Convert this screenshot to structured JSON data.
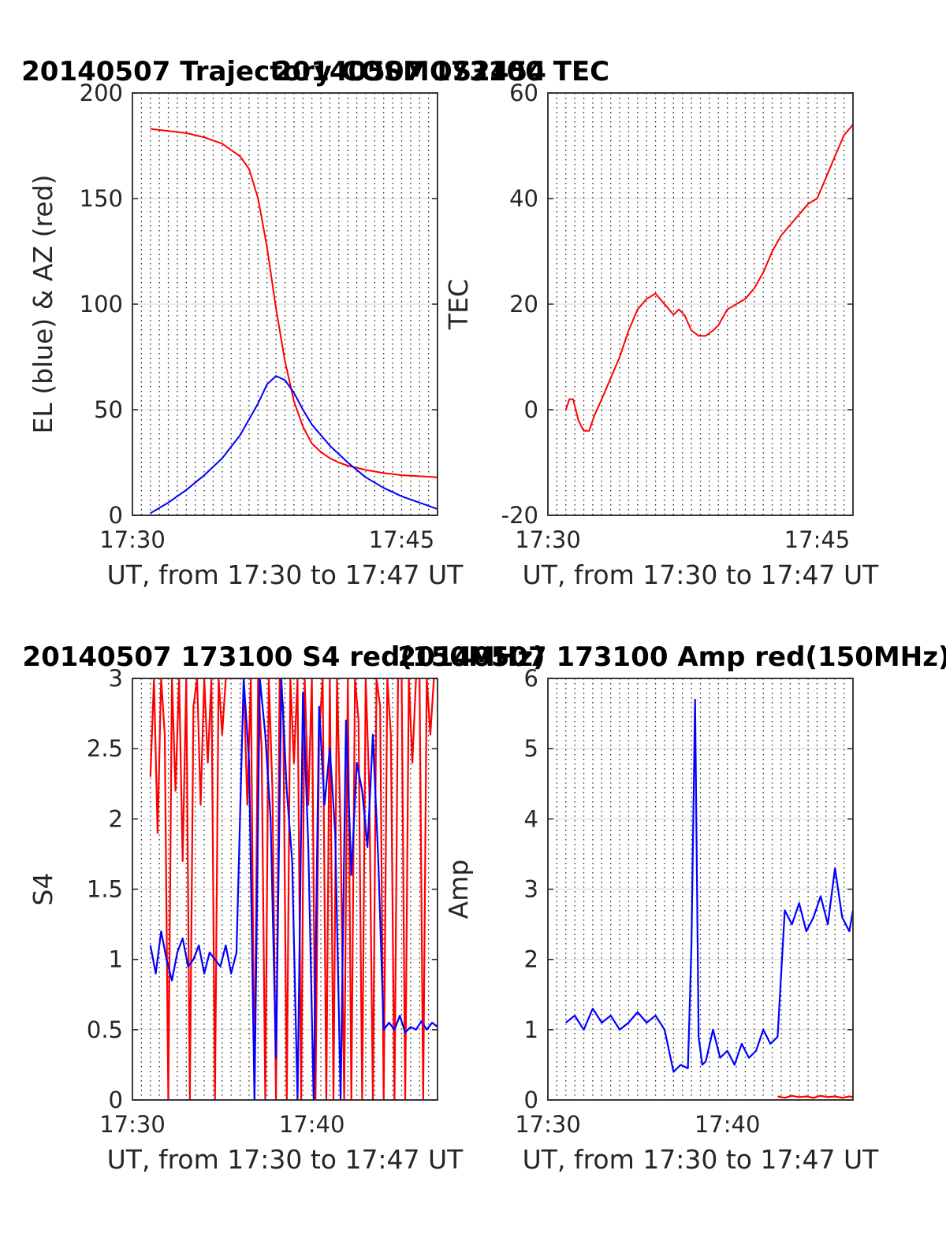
{
  "chart_data": [
    {
      "type": "line",
      "title": "20140507 Trajectory COSMOS2454",
      "xlabel": "UT, from 17:30 to 17:47 UT",
      "ylabel": "EL (blue) & AZ (red)",
      "xlim": [
        0,
        17
      ],
      "ylim": [
        0,
        200
      ],
      "yticks": [
        0,
        50,
        100,
        150,
        200
      ],
      "xticks": [
        {
          "v": 0,
          "label": "17:30"
        },
        {
          "v": 15,
          "label": "17:45"
        }
      ],
      "grid": "dotted vertical every 0.5 min, light horizontal at y ticks",
      "series": [
        {
          "name": "AZ",
          "color": "#ff0000",
          "x": [
            1,
            2,
            3,
            4,
            5,
            6,
            6.5,
            7,
            7.5,
            8,
            8.5,
            9,
            9.5,
            10,
            10.5,
            11,
            11.5,
            12,
            13,
            14,
            15,
            16,
            17
          ],
          "y": [
            183,
            182,
            181,
            179,
            176,
            170,
            164,
            150,
            127,
            98,
            73,
            54,
            42,
            34,
            30,
            27,
            25,
            23.5,
            21.5,
            20,
            19,
            18.5,
            18
          ]
        },
        {
          "name": "EL",
          "color": "#0000ff",
          "x": [
            1,
            2,
            3,
            4,
            5,
            6,
            7,
            7.5,
            8,
            8.5,
            9,
            9.5,
            10,
            11,
            12,
            13,
            14,
            15,
            16,
            17
          ],
          "y": [
            1,
            6,
            12,
            19,
            27,
            38,
            53,
            62,
            66,
            64,
            58,
            50,
            43,
            33,
            25,
            18,
            13,
            9,
            6,
            3
          ]
        }
      ]
    },
    {
      "type": "line",
      "title": "20140507 173100 TEC",
      "xlabel": "UT, from 17:30 to 17:47 UT",
      "ylabel": "TEC",
      "xlim": [
        0,
        17
      ],
      "ylim": [
        -20,
        60
      ],
      "yticks": [
        -20,
        0,
        20,
        40,
        60
      ],
      "xticks": [
        {
          "v": 0,
          "label": "17:30"
        },
        {
          "v": 15,
          "label": "17:45"
        }
      ],
      "grid": "dotted vertical every 0.5 min, light horizontal at y ticks",
      "series": [
        {
          "name": "TEC",
          "color": "#ff0000",
          "x": [
            1,
            1.2,
            1.4,
            1.7,
            2,
            2.3,
            2.6,
            3,
            3.5,
            4,
            4.5,
            5,
            5.5,
            6,
            6.5,
            7,
            7.3,
            7.6,
            8,
            8.4,
            8.8,
            9.2,
            9.5,
            10,
            10.5,
            11,
            11.5,
            12,
            12.5,
            13,
            13.5,
            14,
            14.5,
            15,
            15.5,
            16,
            16.5,
            17
          ],
          "y": [
            0,
            2,
            2,
            -2,
            -4,
            -4,
            -1,
            2,
            6,
            10,
            15,
            19,
            21,
            22,
            20,
            18,
            19,
            18,
            15,
            14,
            14,
            15,
            16,
            19,
            20,
            21,
            23,
            26,
            30,
            33,
            35,
            37,
            39,
            40,
            44,
            48,
            52,
            54
          ]
        }
      ]
    },
    {
      "type": "line",
      "title": "20140507 173100 S4 red(150MHz)",
      "xlabel": "UT, from 17:30 to 17:47 UT",
      "ylabel": "S4",
      "xlim": [
        0,
        17
      ],
      "ylim": [
        0,
        3
      ],
      "yticks": [
        0,
        0.5,
        1,
        1.5,
        2,
        2.5,
        3
      ],
      "xticks": [
        {
          "v": 0,
          "label": "17:30"
        },
        {
          "v": 10,
          "label": "17:40"
        }
      ],
      "grid": "dotted vertical every 0.5 min, light horizontal at y ticks",
      "series": [
        {
          "name": "S4 red",
          "color": "#ff0000",
          "x": [
            1,
            1.2,
            1.4,
            1.6,
            1.8,
            2,
            2.2,
            2.4,
            2.6,
            2.8,
            3,
            3.2,
            3.4,
            3.6,
            3.8,
            4,
            4.2,
            4.4,
            4.6,
            4.8,
            5,
            5.2,
            5.4,
            5.6,
            5.8,
            6,
            6.2,
            6.4,
            6.6,
            6.8,
            7,
            7.2,
            7.4,
            7.6,
            7.8,
            8,
            8.2,
            8.4,
            8.6,
            8.8,
            9,
            9.2,
            9.4,
            9.6,
            9.8,
            10,
            10.2,
            10.4,
            10.6,
            10.8,
            11,
            11.2,
            11.4,
            11.6,
            11.8,
            12,
            12.2,
            12.4,
            12.6,
            12.8,
            13,
            13.2,
            13.4,
            13.6,
            13.8,
            14,
            14.2,
            14.4,
            14.6,
            14.8,
            15,
            15.2,
            15.4,
            15.6,
            15.8,
            16,
            16.2,
            16.4,
            16.6,
            16.8,
            17
          ],
          "y": [
            2.3,
            3,
            1.9,
            3,
            2.6,
            0,
            3,
            2.2,
            3,
            1.7,
            3,
            0,
            2.8,
            3,
            2.1,
            3,
            2.4,
            3,
            0,
            3,
            2.6,
            3,
            3,
            3,
            3,
            3,
            3,
            2.1,
            3,
            0,
            3,
            2.5,
            0,
            3,
            2.2,
            0,
            3,
            2.8,
            0,
            3,
            2.4,
            3,
            0,
            3,
            2.1,
            3,
            0,
            2.6,
            3,
            0,
            3,
            0,
            3,
            1.9,
            0,
            3,
            0,
            3,
            2.7,
            0,
            3,
            2.2,
            0,
            3,
            2.8,
            0,
            3,
            2.6,
            0,
            3,
            3,
            0,
            3,
            2.4,
            3,
            3,
            0,
            3,
            2.6,
            3,
            3
          ]
        },
        {
          "name": "S4 blue",
          "color": "#0000ff",
          "x": [
            1,
            1.3,
            1.6,
            1.9,
            2.2,
            2.5,
            2.8,
            3.1,
            3.4,
            3.7,
            4,
            4.3,
            4.6,
            4.9,
            5.2,
            5.5,
            5.8,
            6.2,
            6.5,
            6.8,
            7.1,
            7.4,
            7.7,
            8,
            8.3,
            8.6,
            8.9,
            9.2,
            9.5,
            9.8,
            10.1,
            10.4,
            10.7,
            11,
            11.3,
            11.6,
            11.9,
            12.2,
            12.5,
            12.8,
            13.1,
            13.4,
            13.7,
            14,
            14.3,
            14.6,
            14.9,
            15.2,
            15.5,
            15.8,
            16.1,
            16.4,
            16.7,
            17
          ],
          "y": [
            1.1,
            0.9,
            1.2,
            1.0,
            0.85,
            1.05,
            1.15,
            0.95,
            1.0,
            1.1,
            0.9,
            1.05,
            1.0,
            0.95,
            1.1,
            0.9,
            1.05,
            3,
            2.4,
            0,
            3,
            2.6,
            2.0,
            0.3,
            3,
            2.2,
            1.7,
            0,
            2.9,
            1.8,
            0,
            2.8,
            2.1,
            2.5,
            1.9,
            0,
            2.7,
            1.6,
            2.4,
            2.2,
            1.8,
            2.6,
            1.7,
            0.5,
            0.55,
            0.5,
            0.6,
            0.48,
            0.52,
            0.5,
            0.56,
            0.5,
            0.55,
            0.52
          ]
        }
      ]
    },
    {
      "type": "line",
      "title": "20140507 173100 Amp red(150MHz)",
      "xlabel": "UT, from 17:30 to 17:47 UT",
      "ylabel": "Amp",
      "xlim": [
        0,
        17
      ],
      "ylim": [
        0,
        6
      ],
      "yticks": [
        0,
        1,
        2,
        3,
        4,
        5,
        6
      ],
      "xticks": [
        {
          "v": 0,
          "label": "17:30"
        },
        {
          "v": 10,
          "label": "17:40"
        }
      ],
      "grid": "dotted vertical every 0.5 min, light horizontal at y ticks",
      "series": [
        {
          "name": "Amp red",
          "color": "#ff0000",
          "x": [
            12.8,
            13.2,
            13.6,
            14,
            14.4,
            14.8,
            15.2,
            15.6,
            16,
            16.4,
            16.8,
            17
          ],
          "y": [
            0.05,
            0.03,
            0.06,
            0.04,
            0.05,
            0.03,
            0.06,
            0.04,
            0.05,
            0.03,
            0.05,
            0.04
          ]
        },
        {
          "name": "Amp blue",
          "color": "#0000ff",
          "x": [
            1,
            1.5,
            2,
            2.5,
            3,
            3.5,
            4,
            4.5,
            5,
            5.5,
            6,
            6.5,
            7,
            7.4,
            7.8,
            8,
            8.2,
            8.4,
            8.6,
            8.8,
            9.2,
            9.6,
            10,
            10.4,
            10.8,
            11.2,
            11.6,
            12,
            12.4,
            12.8,
            13.2,
            13.6,
            14,
            14.4,
            14.8,
            15.2,
            15.6,
            16,
            16.4,
            16.8,
            17
          ],
          "y": [
            1.1,
            1.2,
            1.0,
            1.3,
            1.1,
            1.2,
            1.0,
            1.1,
            1.25,
            1.1,
            1.2,
            1.0,
            0.4,
            0.5,
            0.45,
            2.2,
            5.7,
            0.9,
            0.5,
            0.55,
            1.0,
            0.6,
            0.7,
            0.5,
            0.8,
            0.6,
            0.7,
            1.0,
            0.8,
            0.9,
            2.7,
            2.5,
            2.8,
            2.4,
            2.6,
            2.9,
            2.5,
            3.3,
            2.6,
            2.4,
            2.7
          ]
        }
      ]
    }
  ]
}
